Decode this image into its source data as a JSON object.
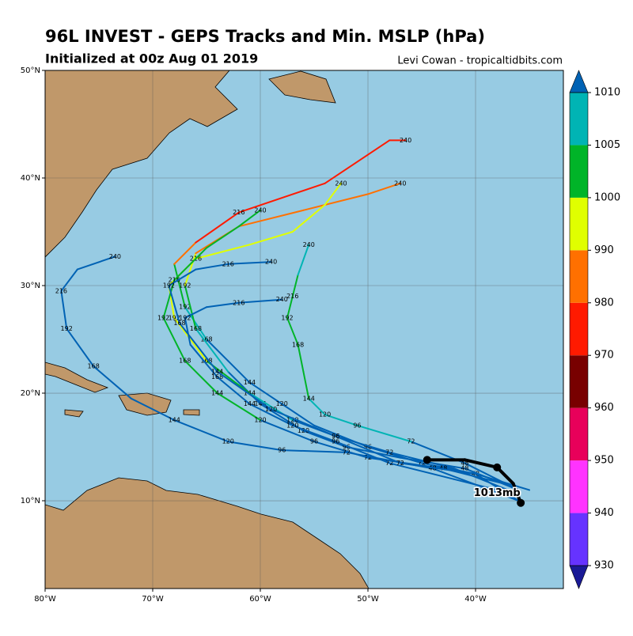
{
  "title": "96L INVEST - GEPS Tracks and Min. MSLP (hPa)",
  "subtitle": "Initialized at 00z Aug 01 2019",
  "credit": "Levi Cowan - tropicaltidbits.com",
  "map": {
    "xlim": [
      -80,
      -31.84
    ],
    "ylim": [
      1.84,
      50
    ],
    "xticks": [
      {
        "value": -80,
        "label": "80°W"
      },
      {
        "value": -70,
        "label": "70°W"
      },
      {
        "value": -60,
        "label": "60°W"
      },
      {
        "value": -50,
        "label": "50°W"
      },
      {
        "value": -40,
        "label": "40°W"
      }
    ],
    "yticks": [
      {
        "value": 10,
        "label": "10°N"
      },
      {
        "value": 20,
        "label": "20°N"
      },
      {
        "value": 30,
        "label": "30°N"
      },
      {
        "value": 40,
        "label": "40°N"
      },
      {
        "value": 50,
        "label": "50°N"
      }
    ],
    "ocean": "#97cbe3",
    "land": "#c0986a",
    "tracks": [
      {
        "lon": [
          -36,
          -40,
          -45,
          -50,
          -55,
          -58,
          -61,
          -63,
          -65,
          -67,
          -68,
          -66,
          -62,
          -54,
          -48,
          -46.5
        ],
        "lat": [
          10,
          12.5,
          13.5,
          15,
          17,
          19,
          21,
          23,
          25,
          28,
          32,
          34,
          36.8,
          39.5,
          43.5,
          43.5
        ],
        "hours": [
          null,
          48,
          72,
          96,
          null,
          120,
          144,
          null,
          168,
          192,
          null,
          null,
          216,
          null,
          null,
          240
        ],
        "mslp": [
          1012,
          1012,
          1012,
          1012,
          1012,
          1012,
          1011,
          1011,
          1008,
          1002,
          985,
          975,
          972,
          972,
          972,
          972
        ]
      },
      {
        "lon": [
          -36,
          -41,
          -47,
          -52,
          -56,
          -60,
          -63,
          -66,
          -67,
          -66,
          -62,
          -56,
          -50,
          -47
        ],
        "lat": [
          11,
          13,
          14,
          15,
          16.5,
          19,
          22,
          26,
          30,
          33,
          35.5,
          37,
          38.5,
          39.5
        ],
        "hours": [
          null,
          48,
          null,
          96,
          120,
          144,
          null,
          168,
          192,
          null,
          null,
          null,
          null,
          240
        ],
        "mslp": [
          1012,
          1012,
          1012,
          1012,
          1012,
          1011,
          1008,
          1002,
          995,
          987,
          985,
          985,
          985,
          985
        ]
      },
      {
        "lon": [
          -37,
          -42,
          -48,
          -53,
          -57,
          -61,
          -65,
          -68,
          -68.5,
          -66,
          -61,
          -57,
          -54,
          -52.5
        ],
        "lat": [
          11,
          13,
          14.5,
          16,
          17.5,
          20,
          23,
          27,
          30,
          32.5,
          33.8,
          35,
          37.5,
          39.5
        ],
        "hours": [
          null,
          null,
          72,
          96,
          120,
          144,
          168,
          192,
          null,
          216,
          null,
          null,
          null,
          240
        ],
        "mslp": [
          1012,
          1012,
          1012,
          1012,
          1008,
          1002,
          998,
          995,
          995,
          995,
          995,
          995,
          995,
          995
        ]
      },
      {
        "lon": [
          -37,
          -43,
          -50,
          -55,
          -60,
          -64,
          -67,
          -69,
          -68,
          -65,
          -62,
          -60
        ],
        "lat": [
          11.5,
          13,
          14,
          15.5,
          17.5,
          20,
          23,
          27,
          30.5,
          33.5,
          35.5,
          37
        ],
        "hours": [
          null,
          48,
          72,
          96,
          120,
          144,
          168,
          192,
          216,
          null,
          null,
          240
        ],
        "mslp": [
          1012,
          1012,
          1012,
          1010,
          1004,
          1003,
          1002,
          1002,
          1002,
          1002,
          1002,
          1002
        ]
      },
      {
        "lon": [
          -36,
          -41,
          -46,
          -51,
          -54,
          -55.5,
          -56,
          -56.5,
          -57.5,
          -57,
          -56.5,
          -55.5
        ],
        "lat": [
          11,
          13.5,
          15.5,
          17,
          18,
          19.5,
          22,
          24.5,
          27,
          29,
          31,
          33.8
        ],
        "hours": [
          null,
          48,
          72,
          96,
          120,
          144,
          null,
          168,
          192,
          216,
          null,
          240
        ],
        "mslp": [
          1012,
          1012,
          1008,
          1007,
          1005,
          1003,
          1002,
          1002,
          1003,
          1004,
          1006,
          1007
        ]
      },
      {
        "lon": [
          -36,
          -42,
          -48,
          -53,
          -57,
          -61,
          -64,
          -66.5,
          -67,
          -65,
          -62,
          -58
        ],
        "lat": [
          10.5,
          12,
          13.5,
          15.5,
          17,
          19,
          21.5,
          24.5,
          27,
          28,
          28.4,
          28.7
        ],
        "hours": [
          null,
          null,
          72,
          96,
          120,
          144,
          168,
          null,
          192,
          null,
          216,
          240
        ],
        "mslp": [
          1012,
          1012,
          1012,
          1012,
          1012,
          1012,
          1012,
          1012,
          1012,
          1012,
          1012,
          1012
        ]
      },
      {
        "lon": [
          -36,
          -44,
          -52,
          -58,
          -63,
          -68,
          -72,
          -75.5,
          -78,
          -78.5,
          -77,
          -73.5
        ],
        "lat": [
          10,
          13,
          14.5,
          14.7,
          15.5,
          17.5,
          19.5,
          22.5,
          26,
          29.5,
          31.5,
          32.7
        ],
        "hours": [
          null,
          48,
          72,
          96,
          120,
          144,
          null,
          168,
          192,
          216,
          null,
          240
        ],
        "mslp": [
          1012,
          1012,
          1012,
          1012,
          1012,
          1012,
          1012,
          1012,
          1012,
          1012,
          1012,
          1012
        ]
      },
      {
        "lon": [
          -35,
          -40,
          -47,
          -53,
          -59,
          -64,
          -67.5,
          -68.5,
          -66,
          -63,
          -59
        ],
        "lat": [
          11,
          12.5,
          13.5,
          16,
          18.5,
          22,
          26.5,
          30,
          31.5,
          32,
          32.2
        ],
        "hours": [
          null,
          null,
          72,
          96,
          120,
          144,
          168,
          192,
          null,
          216,
          240
        ],
        "mslp": [
          1012,
          1012,
          1012,
          1012,
          1012,
          1012,
          1012,
          1012,
          1012,
          1012,
          1012
        ]
      }
    ],
    "mean_track": {
      "lon": [
        -44.5,
        -41,
        -38,
        -36.5,
        -35.8
      ],
      "lat": [
        13.8,
        13.8,
        13.1,
        11.6,
        9.8
      ],
      "color": "#000000",
      "label": "1013mb",
      "label_lon": -38,
      "label_lat": 10.7
    }
  },
  "colorbar": {
    "levels": [
      930,
      940,
      950,
      960,
      970,
      980,
      990,
      1000,
      1005,
      1010
    ],
    "colors": [
      "#6633ff",
      "#ff33ff",
      "#e8005a",
      "#780000",
      "#ff1a00",
      "#ff7000",
      "#e0ff00",
      "#00b428",
      "#00b4b4"
    ],
    "under": "#1a1a96",
    "over": "#0062b4"
  }
}
